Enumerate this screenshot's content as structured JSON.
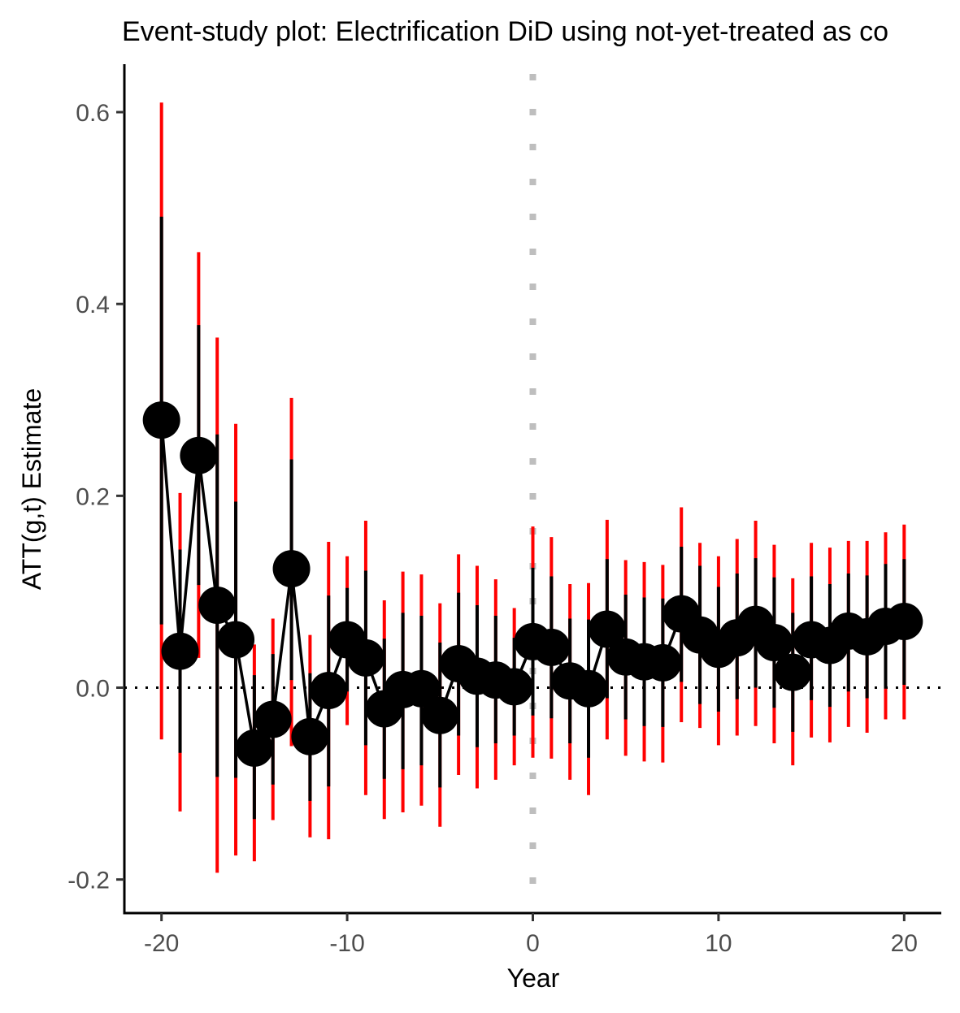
{
  "chart_data": {
    "type": "scatter",
    "title": "Event-study plot: Electrification DiD using not-yet-treated as co",
    "xlabel": "Year",
    "ylabel": "ATT(g,t) Estimate",
    "xlim": [
      -22,
      22
    ],
    "ylim": [
      -0.235,
      0.65
    ],
    "xticks": [
      -20,
      -10,
      0,
      10,
      20
    ],
    "xtick_labels": [
      "-20",
      "-10",
      "0",
      "10",
      "20"
    ],
    "yticks": [
      -0.2,
      0.0,
      0.2,
      0.4,
      0.6
    ],
    "ytick_labels": [
      "-0.2",
      "0.0",
      "0.2",
      "0.4",
      "0.6"
    ],
    "grid": false,
    "legend": "none",
    "reference_lines": {
      "horizontal_y": 0.0,
      "vertical_x": 0
    },
    "colors": {
      "point": "#000000",
      "connector": "#000000",
      "ci_pointwise": "#000000",
      "ci_uniform": "#ff0000",
      "zero_line": "#000000",
      "treatment_line": "#bebebe"
    },
    "x": [
      -20,
      -19,
      -18,
      -17,
      -16,
      -15,
      -14,
      -13,
      -12,
      -11,
      -10,
      -9,
      -8,
      -7,
      -6,
      -5,
      -4,
      -3,
      -2,
      -1,
      0,
      1,
      2,
      3,
      4,
      5,
      6,
      7,
      8,
      9,
      10,
      11,
      12,
      13,
      14,
      15,
      16,
      17,
      18,
      19,
      20
    ],
    "series": [
      {
        "estimate": [
          0.279,
          0.038,
          0.242,
          0.086,
          0.05,
          -0.063,
          -0.033,
          0.124,
          -0.051,
          -0.003,
          0.05,
          0.031,
          -0.022,
          -0.002,
          -0.001,
          -0.029,
          0.025,
          0.012,
          0.008,
          0.001,
          0.048,
          0.042,
          0.007,
          -0.001,
          0.061,
          0.032,
          0.027,
          0.026,
          0.077,
          0.055,
          0.04,
          0.052,
          0.066,
          0.047,
          0.016,
          0.05,
          0.044,
          0.059,
          0.053,
          0.064,
          0.069
        ],
        "ci_pointwise_lower": [
          0.066,
          -0.068,
          0.107,
          -0.093,
          -0.094,
          -0.137,
          -0.101,
          0.008,
          -0.118,
          -0.103,
          -0.004,
          -0.06,
          -0.095,
          -0.085,
          -0.081,
          -0.104,
          -0.05,
          -0.062,
          -0.058,
          -0.05,
          -0.029,
          -0.032,
          -0.058,
          -0.073,
          -0.011,
          -0.033,
          -0.04,
          -0.041,
          0.006,
          -0.017,
          -0.025,
          -0.012,
          0.0,
          -0.021,
          -0.046,
          -0.013,
          -0.02,
          -0.004,
          -0.011,
          -0.001,
          0.003
        ],
        "ci_pointwise_upper": [
          0.491,
          0.144,
          0.378,
          0.264,
          0.194,
          0.013,
          0.035,
          0.238,
          0.015,
          0.096,
          0.104,
          0.122,
          0.051,
          0.078,
          0.075,
          0.047,
          0.099,
          0.086,
          0.075,
          0.052,
          0.125,
          0.116,
          0.072,
          0.071,
          0.134,
          0.097,
          0.094,
          0.093,
          0.147,
          0.127,
          0.105,
          0.119,
          0.135,
          0.115,
          0.078,
          0.116,
          0.108,
          0.119,
          0.117,
          0.129,
          0.134
        ],
        "ci_uniform_lower": [
          -0.054,
          -0.129,
          0.031,
          -0.193,
          -0.175,
          -0.181,
          -0.138,
          -0.061,
          -0.156,
          -0.158,
          -0.039,
          -0.112,
          -0.137,
          -0.13,
          -0.123,
          -0.145,
          -0.091,
          -0.105,
          -0.096,
          -0.081,
          -0.073,
          -0.074,
          -0.096,
          -0.112,
          -0.054,
          -0.071,
          -0.077,
          -0.078,
          -0.036,
          -0.042,
          -0.06,
          -0.05,
          -0.04,
          -0.058,
          -0.081,
          -0.052,
          -0.057,
          -0.041,
          -0.047,
          -0.033,
          -0.033
        ],
        "ci_uniform_upper": [
          0.61,
          0.203,
          0.454,
          0.365,
          0.275,
          0.045,
          0.072,
          0.302,
          0.055,
          0.152,
          0.137,
          0.174,
          0.091,
          0.121,
          0.118,
          0.088,
          0.139,
          0.127,
          0.113,
          0.083,
          0.168,
          0.157,
          0.108,
          0.109,
          0.175,
          0.133,
          0.131,
          0.128,
          0.188,
          0.151,
          0.137,
          0.155,
          0.174,
          0.149,
          0.114,
          0.151,
          0.146,
          0.153,
          0.153,
          0.162,
          0.17
        ]
      }
    ]
  }
}
